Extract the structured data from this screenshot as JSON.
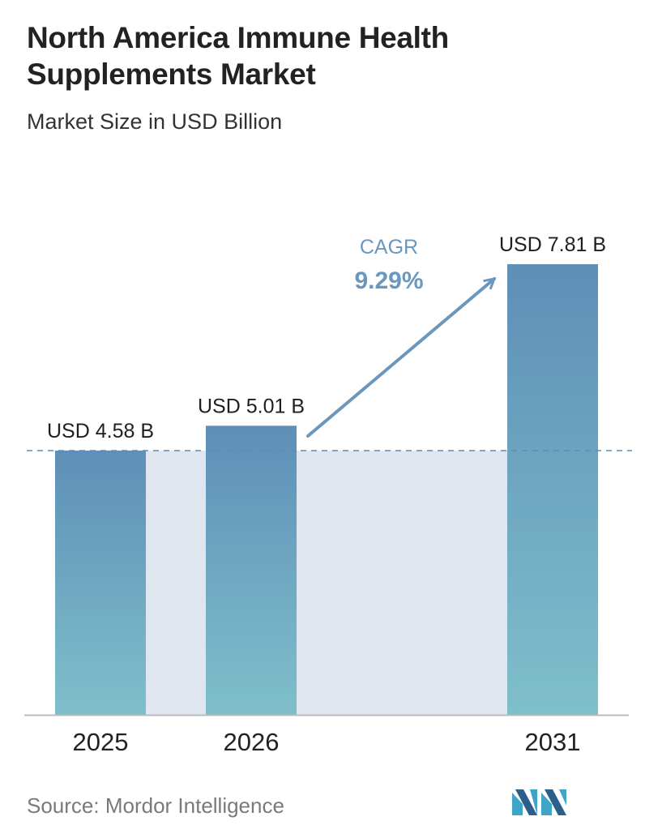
{
  "title": "North America Immune Health Supplements Market",
  "subtitle": "Market Size in USD Billion",
  "source": "Source:  Mordor Intelligence",
  "chart_data": {
    "type": "bar",
    "categories": [
      "2025",
      "2026",
      "2031"
    ],
    "values": [
      4.58,
      5.01,
      7.81
    ],
    "data_labels": [
      "USD 4.58 B",
      "USD 5.01 B",
      "USD 7.81 B"
    ],
    "cagr_label": "CAGR",
    "cagr_value": "9.29%",
    "ylim": [
      0,
      7.81
    ],
    "grid": false,
    "colors": {
      "bar_top": "#5e8fb8",
      "bar_bottom": "#7fbfca",
      "band": "#dfe6ef",
      "arrow": "#6c97bd",
      "baseline": "#bbbbbb",
      "reference_line": "#5f8db0"
    }
  }
}
